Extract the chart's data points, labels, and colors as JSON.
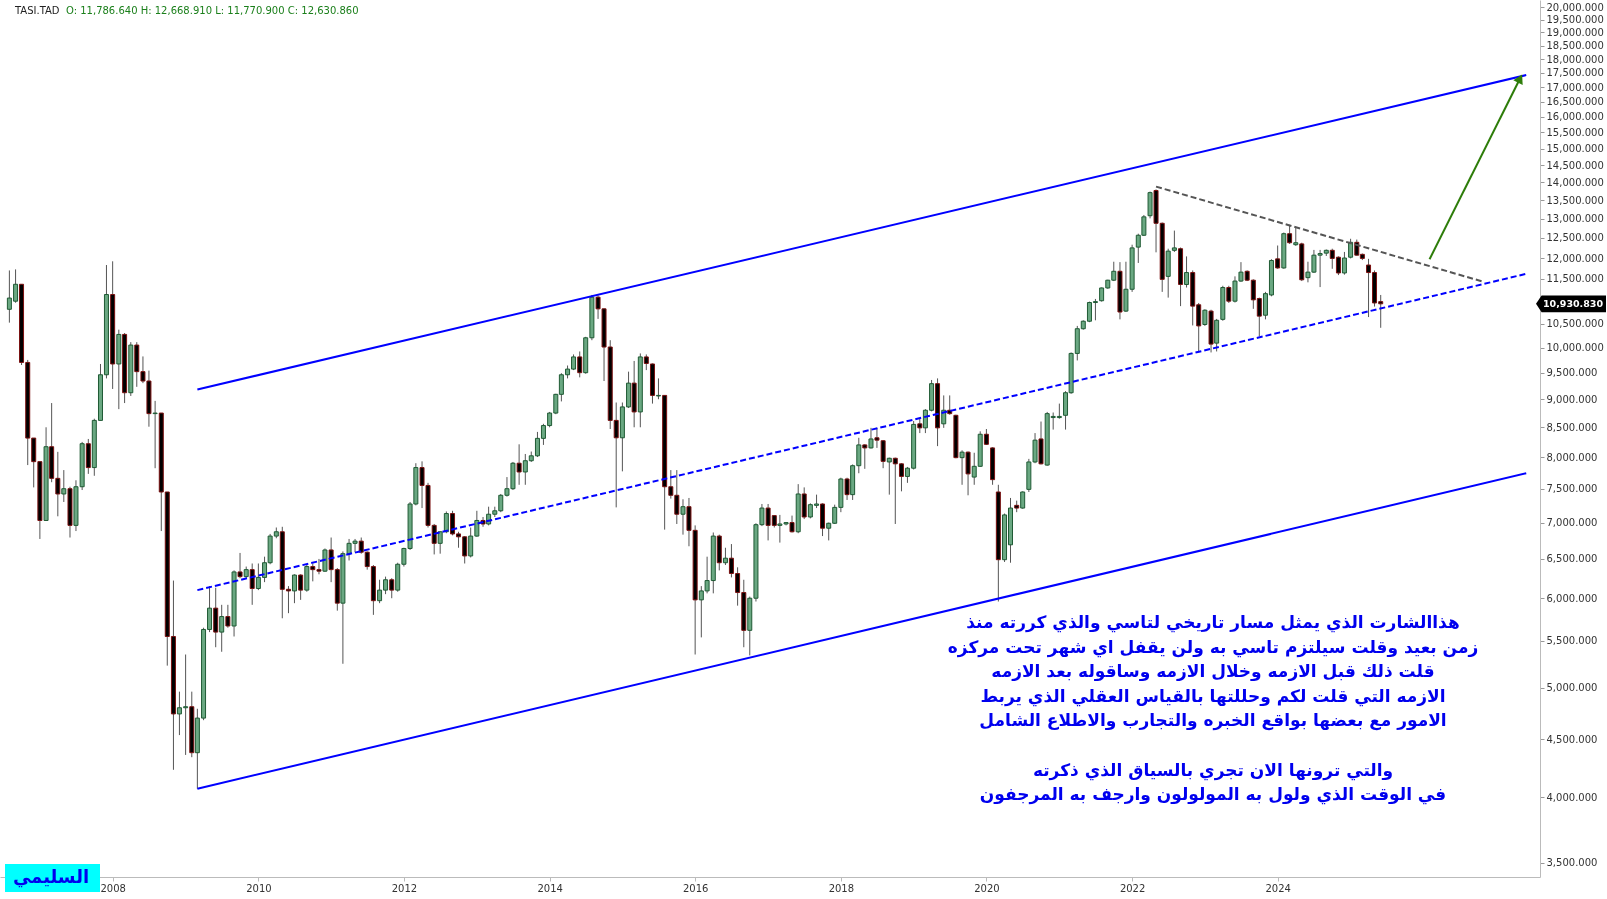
{
  "chart_data": {
    "type": "candlestick",
    "title": "TASI.TAD",
    "subtitle": "O: 11,786.640  H: 12,668.910  L: 11,770.900  C: 12,630.860",
    "annotations": [
      "هذاالشارت الذي يمثل مسار تاريخي لتاسي والذي كررته منذ\nزمن بعيد وقلت سيلتزم تاسي به ولن يقفل اي شهر تحت مركزه\nقلت ذلك قبل الازمه وخلال الازمه وساقوله بعد الازمه\nالازمه التي قلت لكم وحللتها بالقياس العقلي الذي يربط\nالامور مع بعضها بواقع الخبره والتجارب والاطلاع الشامل\n\nوالتي ترونها الان تجري بالسياق الذي ذكرته\nفي الوقت الذي ولول به المولولون وارجف به المرجفون",
      "السليمي",
      "10,930.830"
    ],
    "log": true,
    "xlim": [
      "2006-07-10",
      "2027-07-15"
    ],
    "xticks": [
      {
        "value": "2008",
        "label": "2008"
      },
      {
        "value": "2010",
        "label": "2010"
      },
      {
        "value": "2012",
        "label": "2012"
      },
      {
        "value": "2014",
        "label": "2014"
      },
      {
        "value": "2016",
        "label": "2016"
      },
      {
        "value": "2018",
        "label": "2018"
      },
      {
        "value": "2020",
        "label": "2020"
      },
      {
        "value": "2022",
        "label": "2022"
      },
      {
        "value": "2024",
        "label": "2024"
      }
    ],
    "ylim": [
      3400,
      20300
    ],
    "yticks": [
      {
        "value": 3500,
        "label": "3,500.000"
      },
      {
        "value": 4000,
        "label": "4,000.000"
      },
      {
        "value": 4500,
        "label": "4,500.000"
      },
      {
        "value": 5000,
        "label": "5,000.000"
      },
      {
        "value": 5500,
        "label": "5,500.000"
      },
      {
        "value": 6000,
        "label": "6,000.000"
      },
      {
        "value": 6500,
        "label": "6,500.000"
      },
      {
        "value": 7000,
        "label": "7,000.000"
      },
      {
        "value": 7500,
        "label": "7,500.000"
      },
      {
        "value": 8000,
        "label": "8,000.000"
      },
      {
        "value": 8500,
        "label": "8,500.000"
      },
      {
        "value": 9000,
        "label": "9,000.000"
      },
      {
        "value": 9500,
        "label": "9,500.000"
      },
      {
        "value": 10000,
        "label": "10,000.000"
      },
      {
        "value": 10500,
        "label": "10,500.000"
      },
      {
        "value": 11000,
        "label": null
      },
      {
        "value": 11500,
        "label": "11,500.000"
      },
      {
        "value": 12000,
        "label": "12,000.000"
      },
      {
        "value": 12500,
        "label": "12,500.000"
      },
      {
        "value": 13000,
        "label": "13,000.000"
      },
      {
        "value": 13500,
        "label": "13,500.000"
      },
      {
        "value": 14000,
        "label": "14,000.000"
      },
      {
        "value": 14500,
        "label": "14,500.000"
      },
      {
        "value": 15000,
        "label": "15,000.000"
      },
      {
        "value": 15500,
        "label": "15,500.000"
      },
      {
        "value": 16000,
        "label": "16,000.000"
      },
      {
        "value": 16500,
        "label": "16,500.000"
      },
      {
        "value": 17000,
        "label": "17,000.000"
      },
      {
        "value": 17500,
        "label": "17,500.000"
      },
      {
        "value": 18000,
        "label": "18,000.000"
      },
      {
        "value": 18500,
        "label": "18,500.000"
      },
      {
        "value": 19000,
        "label": "19,000.000"
      },
      {
        "value": 19500,
        "label": "19,500.000"
      },
      {
        "value": 20000,
        "label": "20,000.000"
      }
    ],
    "x": [
      "2006-08",
      "2006-09",
      "2006-10",
      "2006-11",
      "2006-12",
      "2007-01",
      "2007-02",
      "2007-03",
      "2007-04",
      "2007-05",
      "2007-06",
      "2007-07",
      "2007-08",
      "2007-09",
      "2007-10",
      "2007-11",
      "2007-12",
      "2008-01",
      "2008-02",
      "2008-03",
      "2008-04",
      "2008-05",
      "2008-06",
      "2008-07",
      "2008-08",
      "2008-09",
      "2008-10",
      "2008-11",
      "2008-12",
      "2009-01",
      "2009-02",
      "2009-03",
      "2009-04",
      "2009-05",
      "2009-06",
      "2009-07",
      "2009-08",
      "2009-09",
      "2009-10",
      "2009-11",
      "2009-12",
      "2010-01",
      "2010-02",
      "2010-03",
      "2010-04",
      "2010-05",
      "2010-06",
      "2010-07",
      "2010-08",
      "2010-09",
      "2010-10",
      "2010-11",
      "2010-12",
      "2011-01",
      "2011-02",
      "2011-03",
      "2011-04",
      "2011-05",
      "2011-06",
      "2011-07",
      "2011-08",
      "2011-09",
      "2011-10",
      "2011-11",
      "2011-12",
      "2012-01",
      "2012-02",
      "2012-03",
      "2012-04",
      "2012-05",
      "2012-06",
      "2012-07",
      "2012-08",
      "2012-09",
      "2012-10",
      "2012-11",
      "2012-12",
      "2013-01",
      "2013-02",
      "2013-03",
      "2013-04",
      "2013-05",
      "2013-06",
      "2013-07",
      "2013-08",
      "2013-09",
      "2013-10",
      "2013-11",
      "2013-12",
      "2014-01",
      "2014-02",
      "2014-03",
      "2014-04",
      "2014-05",
      "2014-06",
      "2014-07",
      "2014-08",
      "2014-09",
      "2014-10",
      "2014-11",
      "2014-12",
      "2015-01",
      "2015-02",
      "2015-03",
      "2015-04",
      "2015-05",
      "2015-06",
      "2015-07",
      "2015-08",
      "2015-09",
      "2015-10",
      "2015-11",
      "2015-12",
      "2016-01",
      "2016-02",
      "2016-03",
      "2016-04",
      "2016-05",
      "2016-06",
      "2016-07",
      "2016-08",
      "2016-09",
      "2016-10",
      "2016-11",
      "2016-12",
      "2017-01",
      "2017-02",
      "2017-03",
      "2017-04",
      "2017-05",
      "2017-06",
      "2017-07",
      "2017-08",
      "2017-09",
      "2017-10",
      "2017-11",
      "2017-12",
      "2018-01",
      "2018-02",
      "2018-03",
      "2018-04",
      "2018-05",
      "2018-06",
      "2018-07",
      "2018-08",
      "2018-09",
      "2018-10",
      "2018-11",
      "2018-12",
      "2019-01",
      "2019-02",
      "2019-03",
      "2019-04",
      "2019-05",
      "2019-06",
      "2019-07",
      "2019-08",
      "2019-09",
      "2019-10",
      "2019-11",
      "2019-12",
      "2020-01",
      "2020-02",
      "2020-03",
      "2020-04",
      "2020-05",
      "2020-06",
      "2020-07",
      "2020-08",
      "2020-09",
      "2020-10",
      "2020-11",
      "2020-12",
      "2021-01",
      "2021-02",
      "2021-03",
      "2021-04",
      "2021-05",
      "2021-06",
      "2021-07",
      "2021-08",
      "2021-09",
      "2021-10",
      "2021-11",
      "2021-12",
      "2022-01",
      "2022-02",
      "2022-03",
      "2022-04",
      "2022-05",
      "2022-06",
      "2022-07",
      "2022-08",
      "2022-09",
      "2022-10",
      "2022-11",
      "2022-12",
      "2023-01",
      "2023-02",
      "2023-03",
      "2023-04",
      "2023-05",
      "2023-06",
      "2023-07",
      "2023-08",
      "2023-09",
      "2023-10",
      "2023-11",
      "2023-12",
      "2024-01",
      "2024-02",
      "2024-03",
      "2024-04",
      "2024-05",
      "2024-06",
      "2024-07",
      "2024-08",
      "2024-09",
      "2024-10",
      "2024-11",
      "2024-12",
      "2025-01",
      "2025-02",
      "2025-03",
      "2025-04",
      "2025-05",
      "2025-06"
    ],
    "ohlc": [
      [
        10810,
        11700,
        10520,
        11060
      ],
      [
        10990,
        11725,
        10955,
        11375
      ],
      [
        11375,
        11375,
        9650,
        9700
      ],
      [
        9700,
        9750,
        7870,
        8315
      ],
      [
        8315,
        8315,
        7520,
        7925
      ],
      [
        7925,
        7925,
        6770,
        7030
      ],
      [
        7030,
        8500,
        7030,
        8170
      ],
      [
        8170,
        8930,
        7600,
        7660
      ],
      [
        7660,
        8085,
        7090,
        7420
      ],
      [
        7420,
        7790,
        7300,
        7500
      ],
      [
        7500,
        7530,
        6790,
        6960
      ],
      [
        6960,
        7630,
        6880,
        7530
      ],
      [
        7530,
        8250,
        7480,
        8220
      ],
      [
        8220,
        8300,
        7730,
        7830
      ],
      [
        7830,
        8650,
        7700,
        8620
      ],
      [
        8620,
        9670,
        8620,
        9460
      ],
      [
        9460,
        11830,
        9390,
        11140
      ],
      [
        11140,
        11920,
        9190,
        9670
      ],
      [
        9670,
        10370,
        8820,
        10270
      ],
      [
        10270,
        10300,
        8930,
        9120
      ],
      [
        9120,
        10110,
        9060,
        10050
      ],
      [
        10050,
        10110,
        9230,
        9520
      ],
      [
        9520,
        9820,
        9300,
        9340
      ],
      [
        9340,
        9540,
        8510,
        8740
      ],
      [
        8740,
        8970,
        7820,
        8750
      ],
      [
        8750,
        8750,
        6880,
        7450
      ],
      [
        7450,
        7450,
        5230,
        5550
      ],
      [
        5550,
        6220,
        4230,
        4740
      ],
      [
        4740,
        4960,
        4540,
        4800
      ],
      [
        4800,
        5350,
        4360,
        4810
      ],
      [
        4810,
        4960,
        4340,
        4380
      ],
      [
        4380,
        4790,
        4070,
        4700
      ],
      [
        4700,
        5650,
        4680,
        5630
      ],
      [
        5630,
        6150,
        5600,
        5880
      ],
      [
        5880,
        6130,
        5430,
        5600
      ],
      [
        5600,
        5920,
        5380,
        5780
      ],
      [
        5780,
        5920,
        5650,
        5670
      ],
      [
        5670,
        6350,
        5550,
        6330
      ],
      [
        6330,
        6580,
        6250,
        6270
      ],
      [
        6270,
        6400,
        6250,
        6360
      ],
      [
        6360,
        6440,
        5920,
        6120
      ],
      [
        6120,
        6440,
        6100,
        6260
      ],
      [
        6260,
        6530,
        6200,
        6450
      ],
      [
        6450,
        6840,
        6430,
        6810
      ],
      [
        6810,
        6930,
        6780,
        6870
      ],
      [
        6870,
        6940,
        5760,
        6110
      ],
      [
        6110,
        6150,
        5820,
        6090
      ],
      [
        6090,
        6300,
        5940,
        6290
      ],
      [
        6290,
        6300,
        5980,
        6100
      ],
      [
        6100,
        6420,
        6080,
        6400
      ],
      [
        6400,
        6440,
        6210,
        6360
      ],
      [
        6360,
        6500,
        6300,
        6340
      ],
      [
        6340,
        6640,
        6330,
        6620
      ],
      [
        6620,
        6790,
        6200,
        6360
      ],
      [
        6360,
        6380,
        5850,
        5940
      ],
      [
        5940,
        6600,
        5250,
        6570
      ],
      [
        6570,
        6770,
        6480,
        6710
      ],
      [
        6710,
        6770,
        6590,
        6740
      ],
      [
        6740,
        6790,
        6570,
        6590
      ],
      [
        6590,
        6600,
        6360,
        6400
      ],
      [
        6400,
        6420,
        5800,
        5970
      ],
      [
        5970,
        6230,
        5940,
        6100
      ],
      [
        6100,
        6270,
        6050,
        6230
      ],
      [
        6230,
        6250,
        6000,
        6100
      ],
      [
        6100,
        6450,
        6080,
        6430
      ],
      [
        6430,
        6650,
        6400,
        6640
      ],
      [
        6640,
        7300,
        6620,
        7270
      ],
      [
        7270,
        7900,
        7250,
        7830
      ],
      [
        7830,
        7930,
        7210,
        7550
      ],
      [
        7550,
        7590,
        6930,
        6960
      ],
      [
        6960,
        6980,
        6560,
        6710
      ],
      [
        6710,
        6880,
        6570,
        6870
      ],
      [
        6870,
        7160,
        6850,
        7130
      ],
      [
        7130,
        7170,
        6820,
        6840
      ],
      [
        6840,
        6870,
        6650,
        6800
      ],
      [
        6800,
        6810,
        6440,
        6540
      ],
      [
        6540,
        6930,
        6520,
        6810
      ],
      [
        6810,
        7170,
        6800,
        7030
      ],
      [
        7030,
        7080,
        6940,
        6980
      ],
      [
        6980,
        7230,
        6960,
        7120
      ],
      [
        7120,
        7230,
        7080,
        7170
      ],
      [
        7170,
        7420,
        7150,
        7400
      ],
      [
        7400,
        7680,
        7380,
        7500
      ],
      [
        7500,
        7920,
        7480,
        7900
      ],
      [
        7900,
        8210,
        7560,
        7760
      ],
      [
        7760,
        8050,
        7560,
        7940
      ],
      [
        7940,
        8090,
        7920,
        8020
      ],
      [
        8020,
        8420,
        8000,
        8310
      ],
      [
        8310,
        8560,
        8200,
        8530
      ],
      [
        8530,
        8770,
        8500,
        8750
      ],
      [
        8750,
        9100,
        8730,
        9090
      ],
      [
        9090,
        9490,
        8960,
        9460
      ],
      [
        9460,
        9640,
        9390,
        9570
      ],
      [
        9570,
        9860,
        9550,
        9810
      ],
      [
        9810,
        9920,
        9410,
        9500
      ],
      [
        9500,
        10220,
        9480,
        10200
      ],
      [
        10200,
        11130,
        10150,
        11080
      ],
      [
        11080,
        11120,
        10600,
        10820
      ],
      [
        10820,
        10830,
        9340,
        10010
      ],
      [
        10010,
        10150,
        8470,
        8620
      ],
      [
        8620,
        8940,
        7220,
        8320
      ],
      [
        8320,
        8940,
        7770,
        8860
      ],
      [
        8860,
        9520,
        8840,
        9300
      ],
      [
        9300,
        9730,
        8500,
        8770
      ],
      [
        8770,
        9880,
        8500,
        9810
      ],
      [
        9810,
        9860,
        9550,
        9680
      ],
      [
        9670,
        9680,
        8920,
        9070
      ],
      [
        9060,
        9390,
        9000,
        9070
      ],
      [
        9070,
        9070,
        6900,
        7530
      ],
      [
        7530,
        7790,
        7350,
        7400
      ],
      [
        7400,
        7790,
        6980,
        7120
      ],
      [
        7120,
        7340,
        6830,
        7230
      ],
      [
        7230,
        7360,
        6670,
        6890
      ],
      [
        6890,
        6960,
        5350,
        5980
      ],
      [
        5980,
        6150,
        5540,
        6090
      ],
      [
        6090,
        6530,
        6060,
        6220
      ],
      [
        6220,
        6860,
        6060,
        6810
      ],
      [
        6810,
        6830,
        6350,
        6450
      ],
      [
        6450,
        6650,
        6420,
        6510
      ],
      [
        6510,
        6700,
        6260,
        6310
      ],
      [
        6310,
        6390,
        5910,
        6070
      ],
      [
        6070,
        6230,
        5430,
        5620
      ],
      [
        5620,
        6020,
        5340,
        6000
      ],
      [
        6000,
        6990,
        5960,
        6970
      ],
      [
        6970,
        7270,
        6950,
        7210
      ],
      [
        7210,
        7270,
        6750,
        6960
      ],
      [
        7100,
        7100,
        6930,
        6960
      ],
      [
        6960,
        7110,
        6720,
        6980
      ],
      [
        6980,
        7000,
        6960,
        7000
      ],
      [
        7000,
        7100,
        6860,
        6870
      ],
      [
        6870,
        7570,
        6850,
        7420
      ],
      [
        7420,
        7520,
        7050,
        7080
      ],
      [
        7080,
        7280,
        7060,
        7260
      ],
      [
        7250,
        7410,
        7210,
        7270
      ],
      [
        7270,
        7280,
        6810,
        6920
      ],
      [
        6920,
        7000,
        6750,
        6990
      ],
      [
        6990,
        7260,
        6980,
        7220
      ],
      [
        7220,
        7670,
        7150,
        7650
      ],
      [
        7650,
        7670,
        7330,
        7410
      ],
      [
        7410,
        7880,
        7330,
        7860
      ],
      [
        7860,
        8320,
        7740,
        8200
      ],
      [
        8200,
        8210,
        7810,
        8150
      ],
      [
        8150,
        8490,
        8140,
        8300
      ],
      [
        8320,
        8490,
        8150,
        8280
      ],
      [
        8270,
        8280,
        7820,
        7930
      ],
      [
        7920,
        7990,
        7410,
        7980
      ],
      [
        7980,
        7990,
        6980,
        7890
      ],
      [
        7890,
        7900,
        7460,
        7690
      ],
      [
        7690,
        7840,
        7590,
        7820
      ],
      [
        7820,
        8610,
        7800,
        8550
      ],
      [
        8560,
        8660,
        8400,
        8490
      ],
      [
        8490,
        8820,
        8400,
        8800
      ],
      [
        8800,
        9360,
        8780,
        9290
      ],
      [
        9290,
        9390,
        8180,
        8490
      ],
      [
        8560,
        9070,
        8490,
        8800
      ],
      [
        8800,
        9070,
        8720,
        8740
      ],
      [
        8710,
        8720,
        7980,
        7990
      ],
      [
        7990,
        8110,
        7560,
        8080
      ],
      [
        8080,
        8090,
        7400,
        7730
      ],
      [
        7680,
        8070,
        7560,
        7850
      ],
      [
        7850,
        8430,
        7840,
        8380
      ],
      [
        8380,
        8470,
        8200,
        8210
      ],
      [
        8150,
        8160,
        7560,
        7640
      ],
      [
        7450,
        7560,
        5960,
        6490
      ],
      [
        6490,
        7130,
        6460,
        7110
      ],
      [
        6690,
        7360,
        6450,
        7210
      ],
      [
        7250,
        7320,
        7150,
        7210
      ],
      [
        7210,
        7460,
        7200,
        7450
      ],
      [
        7490,
        7970,
        7450,
        7920
      ],
      [
        7920,
        8400,
        7900,
        8280
      ],
      [
        8300,
        8600,
        7880,
        7890
      ],
      [
        7870,
        8770,
        7860,
        8740
      ],
      [
        8670,
        8760,
        8460,
        8690
      ],
      [
        8670,
        8920,
        8650,
        8690
      ],
      [
        8710,
        9150,
        8460,
        9120
      ],
      [
        9120,
        9900,
        9100,
        9880
      ],
      [
        9880,
        10450,
        9740,
        10390
      ],
      [
        10390,
        10570,
        10370,
        10550
      ],
      [
        10550,
        10980,
        10530,
        10960
      ],
      [
        10960,
        11040,
        10570,
        10980
      ],
      [
        11000,
        11300,
        10980,
        11290
      ],
      [
        11290,
        11480,
        11270,
        11470
      ],
      [
        11470,
        11910,
        11450,
        11680
      ],
      [
        11680,
        11900,
        10590,
        10750
      ],
      [
        10770,
        11910,
        10750,
        11260
      ],
      [
        11260,
        12330,
        11200,
        12250
      ],
      [
        12270,
        12610,
        11880,
        12570
      ],
      [
        12570,
        13100,
        12550,
        13050
      ],
      [
        13080,
        13740,
        13010,
        13710
      ],
      [
        13770,
        13800,
        12140,
        12880
      ],
      [
        12880,
        12900,
        11200,
        11490
      ],
      [
        11560,
        12230,
        11070,
        12170
      ],
      [
        12190,
        12690,
        12150,
        12250
      ],
      [
        12230,
        12260,
        10880,
        11370
      ],
      [
        11370,
        12040,
        11300,
        11650
      ],
      [
        11650,
        11700,
        10460,
        10880
      ],
      [
        10910,
        10950,
        9920,
        10450
      ],
      [
        10480,
        10810,
        10450,
        10790
      ],
      [
        10770,
        10800,
        9900,
        10070
      ],
      [
        10090,
        10600,
        9920,
        10570
      ],
      [
        10590,
        11340,
        10560,
        11300
      ],
      [
        11300,
        11340,
        10950,
        10990
      ],
      [
        10990,
        11560,
        10960,
        11450
      ],
      [
        11450,
        11900,
        11430,
        11660
      ],
      [
        11680,
        11700,
        11450,
        11470
      ],
      [
        11470,
        11490,
        10820,
        11020
      ],
      [
        11050,
        11070,
        10230,
        10660
      ],
      [
        10680,
        11200,
        10590,
        11160
      ],
      [
        11130,
        11970,
        11100,
        11940
      ],
      [
        11980,
        12310,
        11740,
        11760
      ],
      [
        11760,
        12640,
        11740,
        12610
      ],
      [
        12610,
        12840,
        12350,
        12380
      ],
      [
        12330,
        12780,
        12300,
        12380
      ],
      [
        12350,
        12380,
        11450,
        11480
      ],
      [
        11530,
        11910,
        11420,
        11660
      ],
      [
        11660,
        12200,
        11640,
        12070
      ],
      [
        12070,
        12200,
        11310,
        12110
      ],
      [
        12120,
        12210,
        12050,
        12190
      ],
      [
        12190,
        12230,
        11740,
        11990
      ],
      [
        12020,
        12040,
        11590,
        11640
      ],
      [
        11640,
        12150,
        11600,
        12000
      ],
      [
        12020,
        12480,
        11990,
        12390
      ],
      [
        12390,
        12460,
        12060,
        12070
      ],
      [
        12090,
        12110,
        11950,
        11990
      ],
      [
        11830,
        11980,
        10640,
        11650
      ],
      [
        11650,
        11700,
        10870,
        10950
      ],
      [
        10980,
        11130,
        10410,
        10930.83
      ]
    ],
    "series": [
      {
        "type": "line",
        "x": [
          "2009-03",
          "2027-06"
        ],
        "values": [
          9180,
          17420
        ],
        "color": "#0000ff",
        "line_style": "solid"
      },
      {
        "type": "line",
        "x": [
          "2009-03",
          "2027-06"
        ],
        "values": [
          4070,
          7740
        ],
        "color": "#0000ff",
        "line_style": "solid"
      },
      {
        "type": "line",
        "x": [
          "2009-03",
          "2027-06"
        ],
        "values": [
          6100,
          11620
        ],
        "color": "#0000ff",
        "line_style": "dashed"
      },
      {
        "type": "line",
        "x": [
          "2022-05",
          "2026-11"
        ],
        "values": [
          13880,
          11430
        ],
        "color": "#555555",
        "line_style": "dashed"
      },
      {
        "type": "line",
        "x": [
          "2026-02",
          "2027-05"
        ],
        "values": [
          11970,
          17300
        ],
        "color": "#2e7d0a",
        "line_style": "solid",
        "marker": "triangle"
      }
    ]
  }
}
